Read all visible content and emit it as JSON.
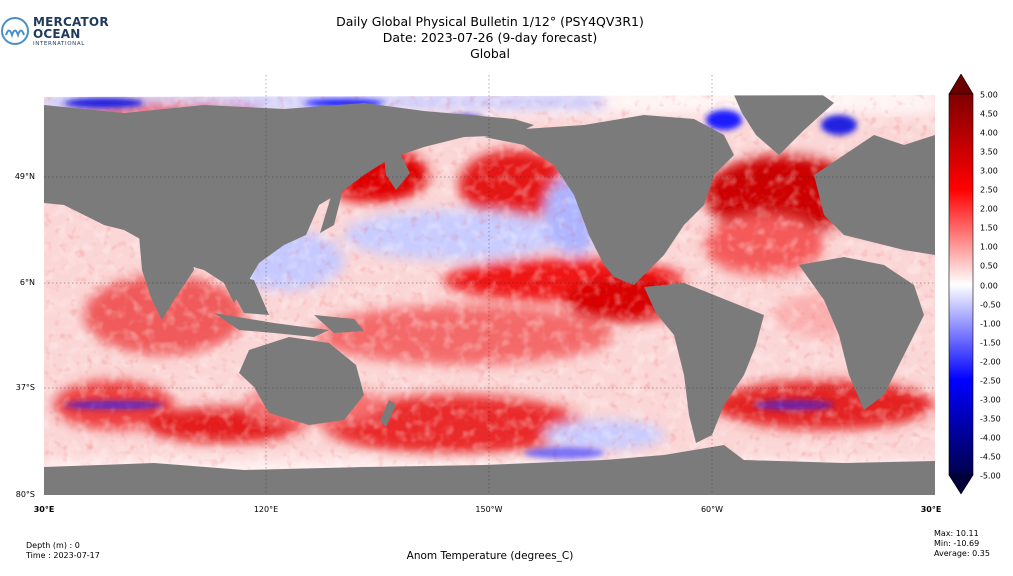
{
  "logo": {
    "line1": "MERCATOR",
    "line2": "OCEAN",
    "line3": "INTERNATIONAL",
    "color": "#1e3a5c",
    "accent": "#4a90c6"
  },
  "title": {
    "line1": "Daily Global Physical Bulletin 1/12° (PSY4QV3R1)",
    "line2": "Date: 2023-07-26 (9-day forecast)",
    "line3": "Global"
  },
  "map": {
    "projection": "equirectangular",
    "lon_range": [
      30,
      390
    ],
    "lat_range": [
      -80,
      90
    ],
    "land_color": "#7b7b7b",
    "lat_labels": [
      "49°N",
      "6°N",
      "37°S",
      "80°S"
    ],
    "lon_labels": [
      "30°E",
      "120°E",
      "150°W",
      "60°W",
      "30°E"
    ],
    "gridlines": true
  },
  "colorbar": {
    "min": -5.0,
    "max": 5.0,
    "extend": "both",
    "colormap": "seismic",
    "colors": [
      "#00004c",
      "#0000ff",
      "#ffffff",
      "#ff0000",
      "#7f0000"
    ],
    "tick_labels": [
      "5.00",
      "4.50",
      "4.00",
      "3.50",
      "3.00",
      "2.50",
      "2.00",
      "1.50",
      "1.00",
      "0.50",
      "0.00",
      "-0.50",
      "-1.00",
      "-1.50",
      "-2.00",
      "-2.50",
      "-3.00",
      "-3.50",
      "-4.00",
      "-4.50",
      "-5.00"
    ]
  },
  "footer": {
    "depth": "Depth (m) : 0",
    "time": "Time : 2023-07-17",
    "variable": "Anom Temperature (degrees_C)",
    "max": "Max: 10.11",
    "min": "Min: -10.69",
    "average": "Average:  0.35"
  }
}
